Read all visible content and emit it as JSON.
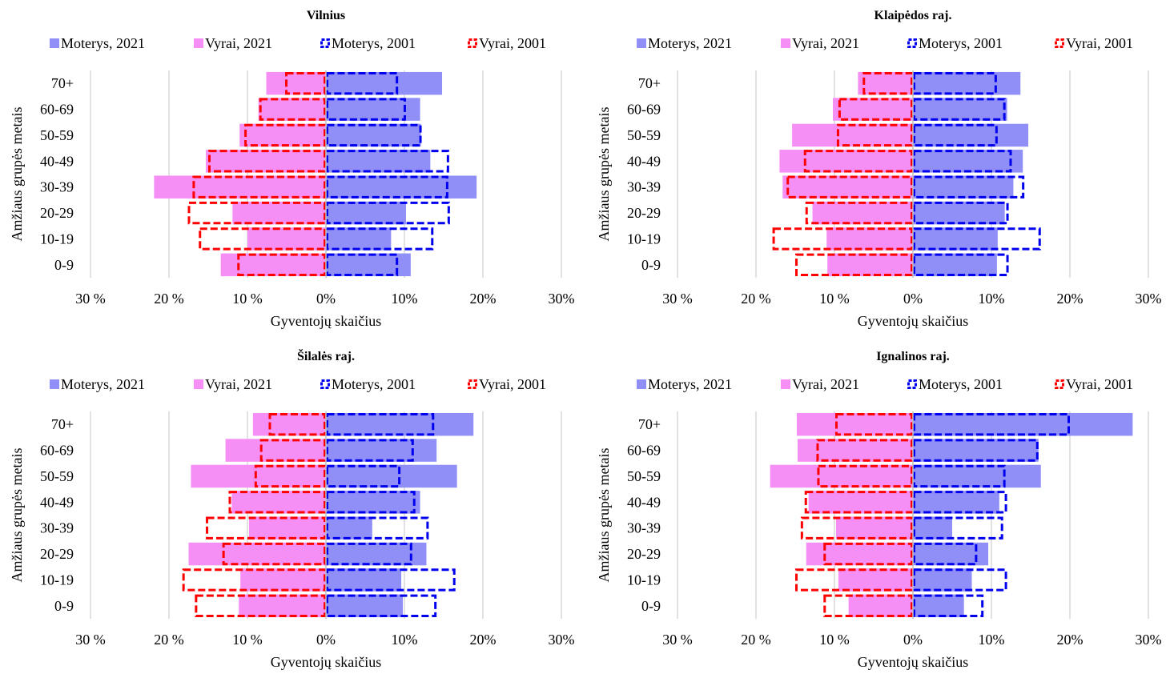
{
  "shared": {
    "legend": [
      {
        "label": "Moterys, 2021",
        "style": "fill",
        "color": "#8f8ff7"
      },
      {
        "label": "Vyrai, 2021",
        "style": "fill",
        "color": "#f58ff5"
      },
      {
        "label": "Moterys, 2001",
        "style": "dash",
        "color": "#0000ee"
      },
      {
        "label": "Vyrai, 2001",
        "style": "dash",
        "color": "#ff0000"
      }
    ],
    "xlabel": "Gyventojų skaičius",
    "ylabel": "Amžiaus grupės metais",
    "x_ticks": [
      "30 %",
      "20 %",
      "10 %",
      "0%",
      "10%",
      "20%",
      "30%"
    ],
    "colors": {
      "women_2021": "#8f8ff7",
      "men_2021": "#f58ff5",
      "women_2001": "#0000ee",
      "men_2001": "#ff0000",
      "grid": "#d9d9d9"
    }
  },
  "chart_data": [
    {
      "type": "bar",
      "title": "Vilnius",
      "categories": [
        "70+",
        "60-69",
        "50-59",
        "40-49",
        "30-39",
        "20-29",
        "10-19",
        "0-9"
      ],
      "xlim": [
        -30,
        30
      ],
      "series": [
        {
          "name": "Moterys, 2021",
          "values": [
            14.8,
            12.0,
            12.1,
            13.3,
            19.2,
            10.2,
            8.3,
            10.8
          ]
        },
        {
          "name": "Vyrai, 2021",
          "values": [
            7.6,
            8.6,
            11.0,
            15.3,
            21.9,
            11.9,
            10.0,
            13.4
          ]
        },
        {
          "name": "Moterys, 2001",
          "values": [
            9.2,
            10.2,
            12.2,
            15.7,
            15.6,
            15.8,
            13.7,
            9.2
          ]
        },
        {
          "name": "Vyrai, 2001",
          "values": [
            5.2,
            8.5,
            10.4,
            15.0,
            17.0,
            17.6,
            16.2,
            11.3
          ]
        }
      ]
    },
    {
      "type": "bar",
      "title": "Klaipėdos raj.",
      "categories": [
        "70+",
        "60-69",
        "50-59",
        "40-49",
        "30-39",
        "20-29",
        "10-19",
        "0-9"
      ],
      "xlim": [
        -30,
        30
      ],
      "series": [
        {
          "name": "Moterys, 2021",
          "values": [
            13.7,
            12.0,
            14.7,
            14.0,
            12.8,
            11.7,
            10.8,
            10.7
          ]
        },
        {
          "name": "Vyrai, 2021",
          "values": [
            7.0,
            10.2,
            15.4,
            17.0,
            16.6,
            12.8,
            11.0,
            10.9
          ]
        },
        {
          "name": "Moterys, 2001",
          "values": [
            10.7,
            11.8,
            10.8,
            12.6,
            14.2,
            12.2,
            16.3,
            12.2
          ]
        },
        {
          "name": "Vyrai, 2001",
          "values": [
            6.4,
            9.5,
            9.7,
            13.9,
            16.1,
            13.7,
            17.9,
            15.0
          ]
        }
      ]
    },
    {
      "type": "bar",
      "title": "Šilalės raj.",
      "categories": [
        "70+",
        "60-69",
        "50-59",
        "40-49",
        "30-39",
        "20-29",
        "10-19",
        "0-9"
      ],
      "xlim": [
        -30,
        30
      ],
      "series": [
        {
          "name": "Moterys, 2021",
          "values": [
            18.8,
            14.1,
            16.7,
            12.0,
            5.9,
            12.8,
            9.6,
            9.8
          ]
        },
        {
          "name": "Vyrai, 2021",
          "values": [
            9.3,
            12.8,
            17.2,
            12.0,
            9.8,
            17.5,
            10.9,
            11.1
          ]
        },
        {
          "name": "Moterys, 2001",
          "values": [
            13.8,
            11.2,
            9.5,
            11.4,
            13.1,
            11.0,
            16.5,
            14.1
          ]
        },
        {
          "name": "Vyrai, 2001",
          "values": [
            7.3,
            8.4,
            9.1,
            12.4,
            15.3,
            13.2,
            18.3,
            16.7
          ]
        }
      ]
    },
    {
      "type": "bar",
      "title": "Ignalinos raj.",
      "categories": [
        "70+",
        "60-69",
        "50-59",
        "40-49",
        "30-39",
        "20-29",
        "10-19",
        "0-9"
      ],
      "xlim": [
        -30,
        30
      ],
      "series": [
        {
          "name": "Moterys, 2021",
          "values": [
            28.0,
            16.0,
            16.3,
            11.0,
            5.0,
            9.6,
            7.5,
            6.5
          ]
        },
        {
          "name": "Vyrai, 2021",
          "values": [
            14.8,
            14.7,
            18.2,
            13.3,
            9.8,
            13.6,
            9.5,
            8.2
          ]
        },
        {
          "name": "Moterys, 2001",
          "values": [
            20.0,
            16.0,
            11.8,
            12.0,
            11.5,
            8.2,
            12.0,
            9.0
          ]
        },
        {
          "name": "Vyrai, 2001",
          "values": [
            9.9,
            12.3,
            12.2,
            13.8,
            14.3,
            11.4,
            15.0,
            11.4
          ]
        }
      ]
    }
  ]
}
